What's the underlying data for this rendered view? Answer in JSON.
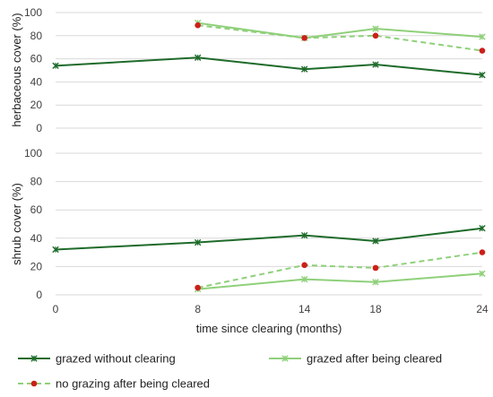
{
  "chart_data": [
    {
      "type": "line",
      "panel": "top",
      "ylabel": "herbaceous cover (%)",
      "ylim": [
        0,
        100
      ],
      "yticks": [
        0,
        20,
        40,
        60,
        80,
        100
      ],
      "x": [
        0,
        8,
        14,
        18,
        24
      ],
      "xlim": [
        0,
        24
      ],
      "grid": "horizontal",
      "series": [
        {
          "name": "grazed without clearing",
          "color": "#1e6b2a",
          "dash": "solid",
          "marker": "x",
          "x": [
            0,
            8,
            14,
            18,
            24
          ],
          "values": [
            54,
            61,
            51,
            55,
            46
          ]
        },
        {
          "name": "grazed after being cleared",
          "color": "#8fd07a",
          "dash": "solid",
          "marker": "x",
          "x": [
            8,
            14,
            18,
            24
          ],
          "values": [
            91,
            78,
            86,
            79
          ]
        },
        {
          "name": "no grazing after being cleared",
          "color": "#8fd07a",
          "markercolor": "#cc1f1a",
          "dash": "dashed",
          "marker": "dot",
          "x": [
            8,
            14,
            18,
            24
          ],
          "values": [
            89,
            78,
            80,
            67
          ]
        }
      ]
    },
    {
      "type": "line",
      "panel": "bottom",
      "ylabel": "shrub cover (%)",
      "xlabel": "time since clearing (months)",
      "ylim": [
        0,
        100
      ],
      "yticks": [
        0,
        20,
        40,
        60,
        80,
        100
      ],
      "x": [
        0,
        8,
        14,
        18,
        24
      ],
      "xticks": [
        "0",
        "8",
        "14",
        "18",
        "24"
      ],
      "xlim": [
        0,
        24
      ],
      "grid": "horizontal",
      "series": [
        {
          "name": "grazed without clearing",
          "color": "#1e6b2a",
          "dash": "solid",
          "marker": "x",
          "x": [
            0,
            8,
            14,
            18,
            24
          ],
          "values": [
            32,
            37,
            42,
            38,
            47
          ]
        },
        {
          "name": "grazed after being cleared",
          "color": "#8fd07a",
          "dash": "solid",
          "marker": "x",
          "x": [
            8,
            14,
            18,
            24
          ],
          "values": [
            4,
            11,
            9,
            15
          ]
        },
        {
          "name": "no grazing after being cleared",
          "color": "#8fd07a",
          "markercolor": "#cc1f1a",
          "dash": "dashed",
          "marker": "dot",
          "x": [
            8,
            14,
            18,
            24
          ],
          "values": [
            5,
            21,
            19,
            30
          ]
        }
      ]
    }
  ],
  "legend": {
    "placement": "bottom",
    "items": [
      {
        "label": "grazed without clearing",
        "color": "#1e6b2a",
        "dash": "solid",
        "marker": "x"
      },
      {
        "label": "grazed after being cleared",
        "color": "#8fd07a",
        "dash": "solid",
        "marker": "x"
      },
      {
        "label": "no grazing after being cleared",
        "color": "#8fd07a",
        "markercolor": "#cc1f1a",
        "dash": "dashed",
        "marker": "dot"
      }
    ]
  },
  "colors": {
    "grid": "#d9d9d9",
    "dark_green": "#1e6b2a",
    "light_green": "#8fd07a",
    "red": "#cc1f1a"
  }
}
